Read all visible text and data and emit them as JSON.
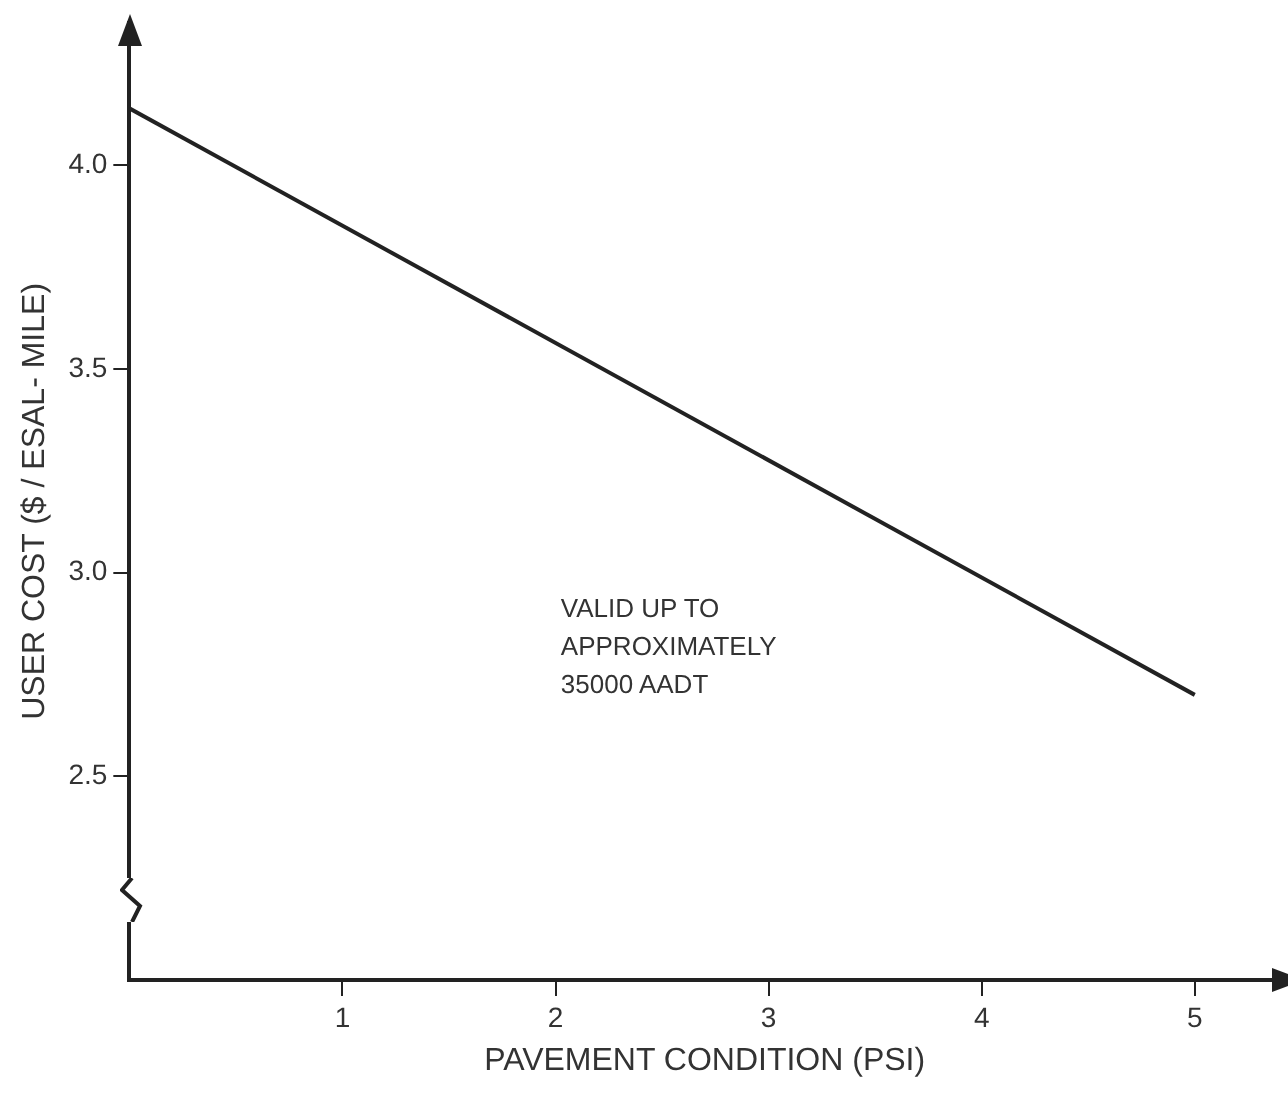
{
  "chart_data": {
    "type": "line",
    "xlabel": "PAVEMENT CONDITION (PSI)",
    "ylabel": "USER COST ($ / ESAL- MILE)",
    "x": [
      0,
      5
    ],
    "series": [
      {
        "color": "#222222",
        "values": [
          4.14,
          2.7
        ]
      }
    ],
    "xlim": [
      0,
      5.4
    ],
    "xticks": [
      1,
      2,
      3,
      4,
      5
    ],
    "ylim": [
      2.0,
      4.35
    ],
    "yticks": [
      {
        "value": 2.5,
        "label": "2.5"
      },
      {
        "value": 3,
        "label": "3.0"
      },
      {
        "value": 3.5,
        "label": "3.5"
      },
      {
        "value": 4,
        "label": "4.0"
      }
    ],
    "annotations": [
      "VALID UP TO\nAPPROXIMATELY\n35000 AADT"
    ],
    "grid": false,
    "legend": false,
    "marker": "none",
    "line_style": "solid"
  }
}
